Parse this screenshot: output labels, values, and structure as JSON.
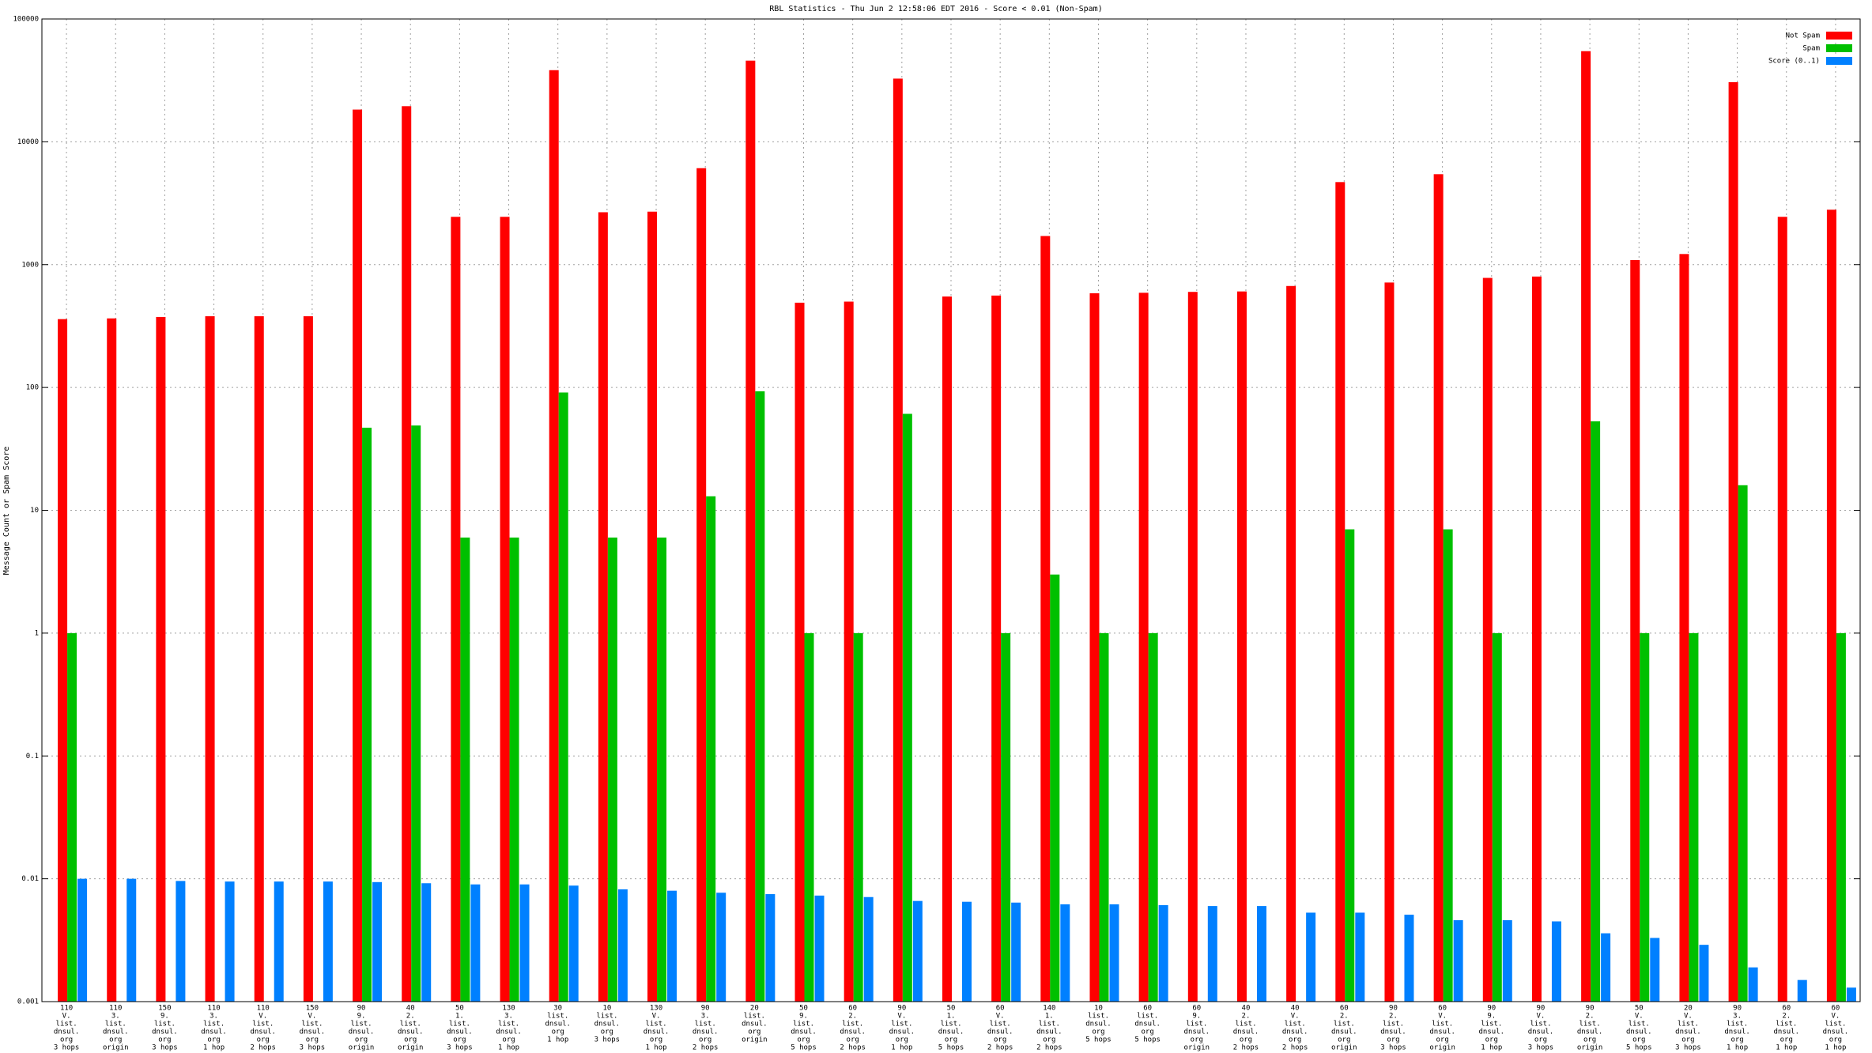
{
  "chart_data": {
    "type": "bar",
    "title": "RBL Statistics - Thu Jun  2 12:58:06 EDT 2016 - Score < 0.01 (Non-Spam)",
    "y_label": "Message Count or Spam Score",
    "log_y": true,
    "grid": true,
    "legend": "top-right",
    "ylim": [
      0.001,
      100000
    ],
    "yticks": [
      0.001,
      0.01,
      0.1,
      1,
      10,
      100,
      1000,
      10000,
      100000
    ],
    "categories": [
      [
        "110",
        "V.",
        "list.",
        "dnsul.",
        "org",
        "3 hops"
      ],
      [
        "110",
        "3.",
        "list.",
        "dnsul.",
        "org",
        "origin"
      ],
      [
        "150",
        "9.",
        "list.",
        "dnsul.",
        "org",
        "3 hops"
      ],
      [
        "110",
        "3.",
        "list.",
        "dnsul.",
        "org",
        "1 hop"
      ],
      [
        "110",
        "V.",
        "list.",
        "dnsul.",
        "org",
        "2 hops"
      ],
      [
        "150",
        "V.",
        "list.",
        "dnsul.",
        "org",
        "3 hops"
      ],
      [
        "90",
        "9.",
        "list.",
        "dnsul.",
        "org",
        "origin"
      ],
      [
        "40",
        "2.",
        "list.",
        "dnsul.",
        "org",
        "origin"
      ],
      [
        "50",
        "1.",
        "list.",
        "dnsul.",
        "org",
        "3 hops"
      ],
      [
        "130",
        "3.",
        "list.",
        "dnsul.",
        "org",
        "1 hop"
      ],
      [
        "30",
        "list.",
        "dnsul.",
        "org",
        "1 hop"
      ],
      [
        "10",
        "list.",
        "dnsul.",
        "org",
        "3 hops"
      ],
      [
        "130",
        "V.",
        "list.",
        "dnsul.",
        "org",
        "1 hop"
      ],
      [
        "90",
        "3.",
        "list.",
        "dnsul.",
        "org",
        "2 hops"
      ],
      [
        "20",
        "list.",
        "dnsul.",
        "org",
        "origin"
      ],
      [
        "50",
        "9.",
        "list.",
        "dnsul.",
        "org",
        "5 hops"
      ],
      [
        "60",
        "2.",
        "list.",
        "dnsul.",
        "org",
        "2 hops"
      ],
      [
        "90",
        "V.",
        "list.",
        "dnsul.",
        "org",
        "1 hop"
      ],
      [
        "50",
        "1.",
        "list.",
        "dnsul.",
        "org",
        "5 hops"
      ],
      [
        "60",
        "V.",
        "list.",
        "dnsul.",
        "org",
        "2 hops"
      ],
      [
        "140",
        "1.",
        "list.",
        "dnsul.",
        "org",
        "2 hops"
      ],
      [
        "10",
        "list.",
        "dnsul.",
        "org",
        "5 hops"
      ],
      [
        "60",
        "list.",
        "dnsul.",
        "org",
        "5 hops"
      ],
      [
        "60",
        "9.",
        "list.",
        "dnsul.",
        "org",
        "origin"
      ],
      [
        "40",
        "2.",
        "list.",
        "dnsul.",
        "org",
        "2 hops"
      ],
      [
        "40",
        "V.",
        "list.",
        "dnsul.",
        "org",
        "2 hops"
      ],
      [
        "60",
        "2.",
        "list.",
        "dnsul.",
        "org",
        "origin"
      ],
      [
        "90",
        "2.",
        "list.",
        "dnsul.",
        "org",
        "3 hops"
      ],
      [
        "60",
        "V.",
        "list.",
        "dnsul.",
        "org",
        "origin"
      ],
      [
        "90",
        "9.",
        "list.",
        "dnsul.",
        "org",
        "1 hop"
      ],
      [
        "90",
        "V.",
        "list.",
        "dnsul.",
        "org",
        "3 hops"
      ],
      [
        "90",
        "2.",
        "list.",
        "dnsul.",
        "org",
        "origin"
      ],
      [
        "50",
        "V.",
        "list.",
        "dnsul.",
        "org",
        "5 hops"
      ],
      [
        "20",
        "V.",
        "list.",
        "dnsul.",
        "org",
        "3 hops"
      ],
      [
        "90",
        "3.",
        "list.",
        "dnsul.",
        "org",
        "1 hop"
      ],
      [
        "60",
        "2.",
        "list.",
        "dnsul.",
        "org",
        "1 hop"
      ],
      [
        "60",
        "V.",
        "list.",
        "dnsul.",
        "org",
        "1 hop"
      ]
    ],
    "series": [
      {
        "name": "Not Spam",
        "color": "#ff0000",
        "values": [
          360,
          365,
          375,
          380,
          380,
          380,
          18300,
          19500,
          2450,
          2450,
          38300,
          2670,
          2700,
          6100,
          45800,
          490,
          500,
          32700,
          550,
          560,
          1710,
          585,
          590,
          600,
          605,
          670,
          4700,
          715,
          5450,
          780,
          800,
          54700,
          1090,
          1220,
          30600,
          2450,
          2800
        ]
      },
      {
        "name": "Spam",
        "color": "#00c000",
        "values": [
          1,
          null,
          null,
          null,
          null,
          null,
          47,
          49,
          6,
          6,
          91,
          6,
          6,
          13,
          93,
          1,
          1,
          61,
          null,
          1,
          3,
          1,
          1,
          null,
          null,
          null,
          7,
          null,
          7,
          1,
          null,
          53,
          1,
          1,
          16,
          null,
          1
        ]
      },
      {
        "name": "Score (0..1)",
        "color": "#0080ff",
        "values": [
          0.01,
          0.01,
          0.0096,
          0.0095,
          0.0095,
          0.0095,
          0.0094,
          0.0092,
          0.009,
          0.009,
          0.0088,
          0.0082,
          0.008,
          0.0077,
          0.0075,
          0.0073,
          0.0071,
          0.0066,
          0.0065,
          0.0064,
          0.0062,
          0.0062,
          0.0061,
          0.006,
          0.006,
          0.0053,
          0.0053,
          0.0051,
          0.0046,
          0.0046,
          0.0045,
          0.0036,
          0.0033,
          0.0029,
          0.0019,
          0.0015,
          0.0013
        ]
      }
    ]
  }
}
